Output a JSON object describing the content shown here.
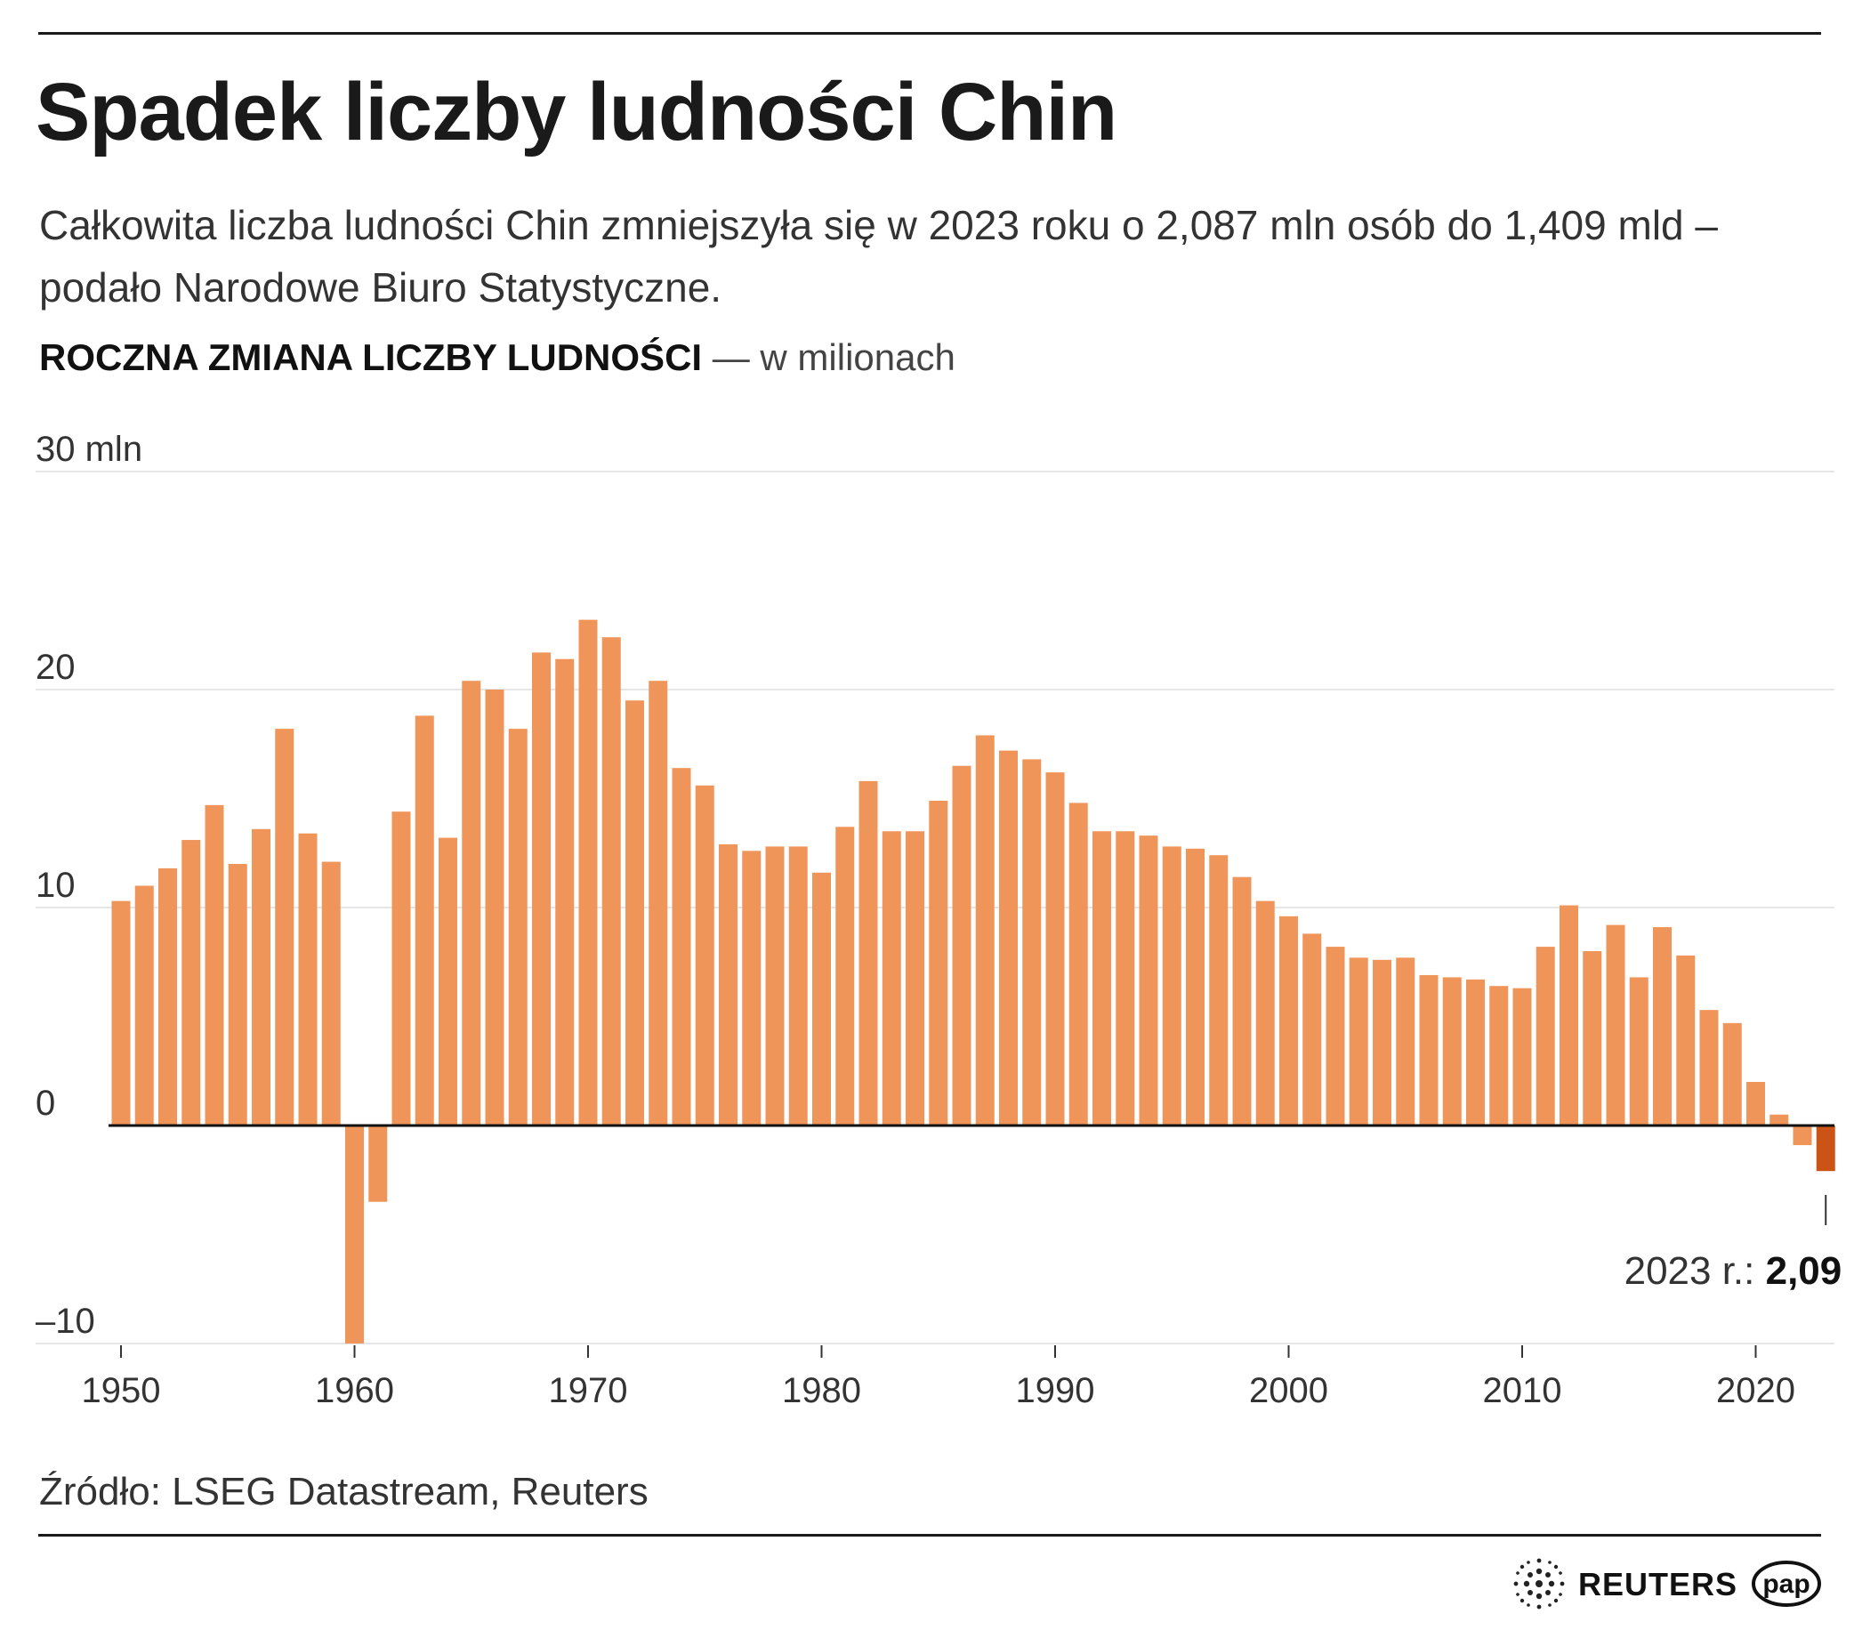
{
  "title": "Spadek liczby ludności Chin",
  "subtitle": "Całkowita liczba ludności Chin zmniejszyła się w 2023 roku o 2,087 mln osób do 1,409 mld – podało Narodowe Biuro Statystyczne.",
  "chart_heading": {
    "main": "ROCZNA ZMIANA LICZBY LUDNOŚCI",
    "unit": " — w milionach"
  },
  "source": "Źródło: LSEG Datastream, Reuters",
  "logos": {
    "reuters": "REUTERS",
    "pap": "pap"
  },
  "colors": {
    "bar": "#f0955a",
    "highlight": "#cc5316",
    "text": "#1a1a1a",
    "grid": "#e6e6e6"
  },
  "chart_data": {
    "type": "bar",
    "title": "ROCZNA ZMIANA LICZBY LUDNOŚCI",
    "ylabel": "w milionach",
    "ylim": [
      -10,
      30
    ],
    "xlim": [
      1950,
      2023
    ],
    "grid": true,
    "y_ticks": [
      {
        "value": 30,
        "label": "30 mln"
      },
      {
        "value": 20,
        "label": "20"
      },
      {
        "value": 10,
        "label": "10"
      },
      {
        "value": 0,
        "label": "0"
      },
      {
        "value": -10,
        "label": "–10"
      }
    ],
    "x_ticks": [
      1950,
      1960,
      1970,
      1980,
      1990,
      2000,
      2010,
      2020
    ],
    "x": [
      1950,
      1951,
      1952,
      1953,
      1954,
      1955,
      1956,
      1957,
      1958,
      1959,
      1960,
      1961,
      1962,
      1963,
      1964,
      1965,
      1966,
      1967,
      1968,
      1969,
      1970,
      1971,
      1972,
      1973,
      1974,
      1975,
      1976,
      1977,
      1978,
      1979,
      1980,
      1981,
      1982,
      1983,
      1984,
      1985,
      1986,
      1987,
      1988,
      1989,
      1990,
      1991,
      1992,
      1993,
      1994,
      1995,
      1996,
      1997,
      1998,
      1999,
      2000,
      2001,
      2002,
      2003,
      2004,
      2005,
      2006,
      2007,
      2008,
      2009,
      2010,
      2011,
      2012,
      2013,
      2014,
      2015,
      2016,
      2017,
      2018,
      2019,
      2020,
      2021,
      2022,
      2023
    ],
    "values": [
      10.3,
      11.0,
      11.8,
      13.1,
      14.7,
      12.0,
      13.6,
      18.2,
      13.4,
      12.1,
      -10.0,
      -3.5,
      14.4,
      18.8,
      13.2,
      20.4,
      20.0,
      18.2,
      21.7,
      21.4,
      23.2,
      22.4,
      19.5,
      20.4,
      16.4,
      15.6,
      12.9,
      12.6,
      12.8,
      12.8,
      11.6,
      13.7,
      15.8,
      13.5,
      13.5,
      14.9,
      16.5,
      17.9,
      17.2,
      16.8,
      16.2,
      14.8,
      13.5,
      13.5,
      13.3,
      12.8,
      12.7,
      12.4,
      11.4,
      10.3,
      9.6,
      8.8,
      8.2,
      7.7,
      7.6,
      7.7,
      6.9,
      6.8,
      6.7,
      6.4,
      6.3,
      8.2,
      10.1,
      8.0,
      9.2,
      6.8,
      9.1,
      7.8,
      5.3,
      4.7,
      2.0,
      0.5,
      -0.9,
      -2.09
    ],
    "highlight": {
      "year": 2023,
      "label": "2023 r.: ",
      "value_label": "2,09"
    }
  }
}
